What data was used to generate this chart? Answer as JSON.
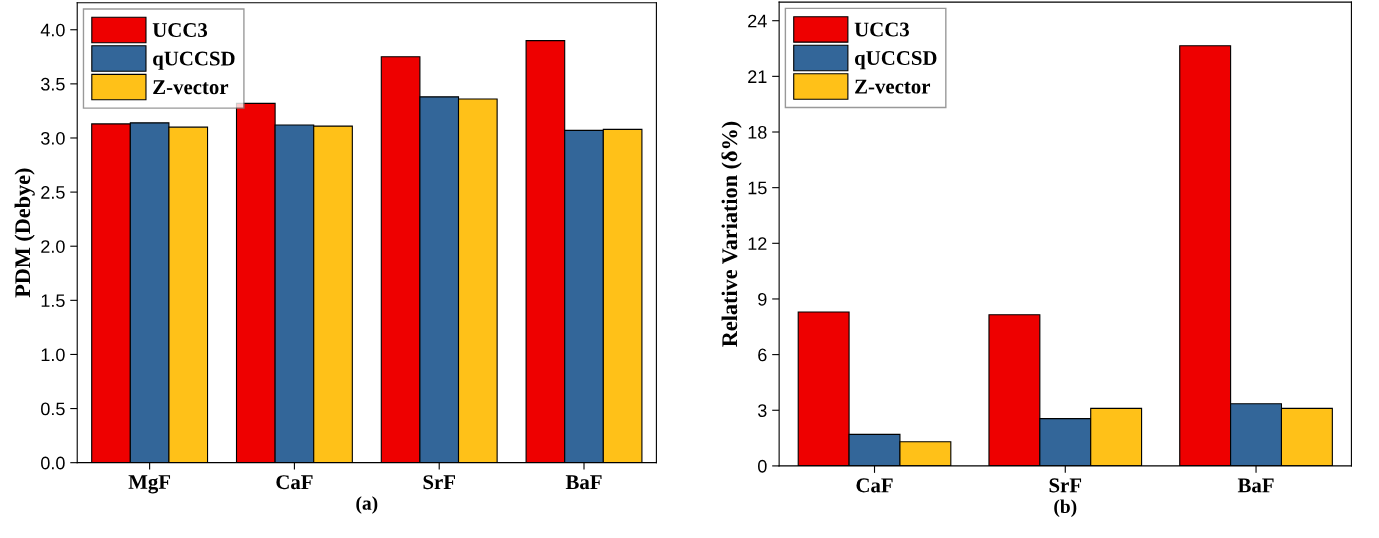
{
  "chart_data": [
    {
      "type": "bar",
      "xlabel": "(a)",
      "ylabel": "PDM (Debye)",
      "categories": [
        "MgF",
        "CaF",
        "SrF",
        "BaF"
      ],
      "series": [
        {
          "name": "UCC3",
          "color": "#ee0000",
          "values": [
            3.13,
            3.32,
            3.75,
            3.9
          ]
        },
        {
          "name": "qUCCSD",
          "color": "#336699",
          "values": [
            3.14,
            3.12,
            3.38,
            3.07
          ]
        },
        {
          "name": "Z-vector",
          "color": "#ffc118",
          "values": [
            3.1,
            3.11,
            3.36,
            3.08
          ]
        }
      ],
      "ylim": [
        0,
        4.25
      ],
      "yticks": [
        {
          "value": 0,
          "label": "0.0"
        },
        0.5,
        {
          "value": 1,
          "label": "1.0"
        },
        1.5,
        {
          "value": 2,
          "label": "2.0"
        },
        2.5,
        {
          "value": 3,
          "label": "3.0"
        },
        3.5,
        {
          "value": 4,
          "label": "4.0"
        }
      ],
      "grid": false,
      "legend": "top left"
    },
    {
      "type": "bar",
      "xlabel": "(b)",
      "ylabel": "Relative Variation (δ%)",
      "categories": [
        "CaF",
        "SrF",
        "BaF"
      ],
      "series": [
        {
          "name": "UCC3",
          "color": "#ee0000",
          "values": [
            8.3,
            8.15,
            22.65
          ]
        },
        {
          "name": "qUCCSD",
          "color": "#336699",
          "values": [
            1.7,
            2.55,
            3.35
          ]
        },
        {
          "name": "Z-vector",
          "color": "#ffc118",
          "values": [
            1.3,
            3.1,
            3.1
          ]
        }
      ],
      "ylim": [
        0,
        25
      ],
      "yticks": [
        0,
        3,
        6,
        9,
        12,
        15,
        18,
        21,
        24
      ],
      "grid": false,
      "legend": "top left"
    }
  ]
}
